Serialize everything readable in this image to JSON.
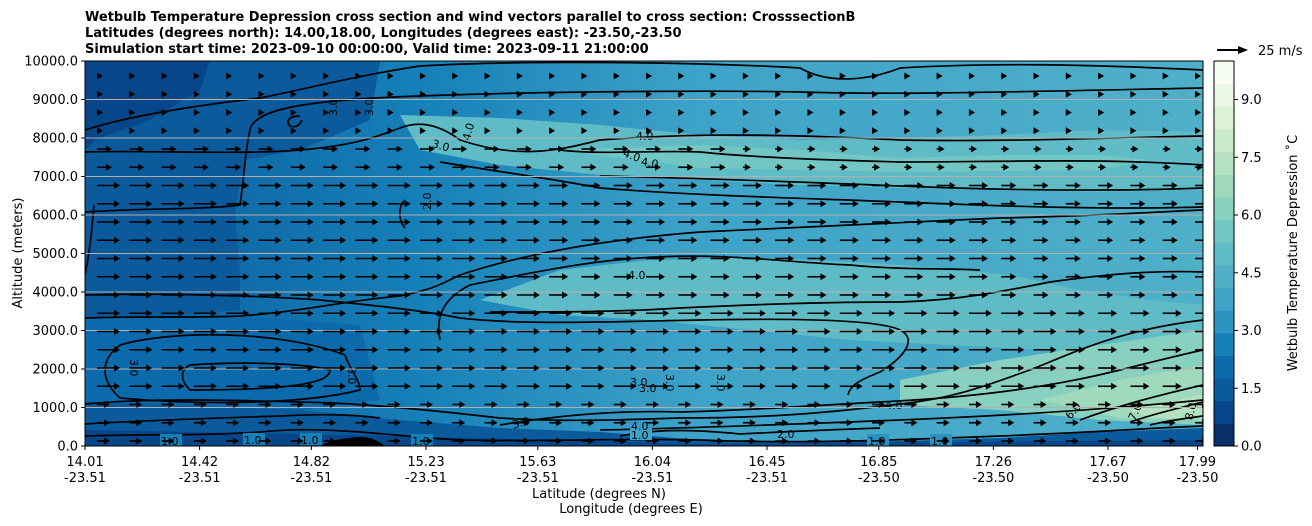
{
  "chart_data": {
    "type": "contourf",
    "title_lines": [
      "Wetbulb Temperature Depression cross section and wind vectors parallel to cross section: CrosssectionB",
      "Latitudes (degrees north): 14.00,18.00, Longitudes (degrees east): -23.50,-23.50",
      "Simulation start time: 2023-09-10 00:00:00, Valid time: 2023-09-11 21:00:00"
    ],
    "ylabel": "Altitude (meters)",
    "xlabel_lat": "Latitude (degrees N)",
    "xlabel_lon": "Longitude (degrees E)",
    "ylim": [
      0,
      10000
    ],
    "y_ticks": [
      "0.0",
      "1000.0",
      "2000.0",
      "3000.0",
      "4000.0",
      "5000.0",
      "6000.0",
      "7000.0",
      "8000.0",
      "9000.0",
      "10000.0"
    ],
    "y_tick_values": [
      0,
      1000,
      2000,
      3000,
      4000,
      5000,
      6000,
      7000,
      8000,
      9000,
      10000
    ],
    "x_ticks": [
      {
        "lat": "14.01",
        "lon": "-23.51",
        "frac": 0.0
      },
      {
        "lat": "14.42",
        "lon": "-23.51",
        "frac": 0.1025
      },
      {
        "lat": "14.82",
        "lon": "-23.51",
        "frac": 0.2025
      },
      {
        "lat": "15.23",
        "lon": "-23.51",
        "frac": 0.305
      },
      {
        "lat": "15.63",
        "lon": "-23.51",
        "frac": 0.405
      },
      {
        "lat": "16.04",
        "lon": "-23.51",
        "frac": 0.5075
      },
      {
        "lat": "16.45",
        "lon": "-23.51",
        "frac": 0.61
      },
      {
        "lat": "16.85",
        "lon": "-23.50",
        "frac": 0.71
      },
      {
        "lat": "17.26",
        "lon": "-23.50",
        "frac": 0.8125
      },
      {
        "lat": "17.67",
        "lon": "-23.50",
        "frac": 0.915
      },
      {
        "lat": "17.99",
        "lon": "-23.50",
        "frac": 0.995
      }
    ],
    "grid": "horizontal",
    "colorbar": {
      "label": "Wetbulb Temperature Depression ˚C",
      "range": [
        0,
        10
      ],
      "ticks": [
        "0.0",
        "1.5",
        "3.0",
        "4.5",
        "6.0",
        "7.5",
        "9.0"
      ],
      "tick_values": [
        0,
        1.5,
        3,
        4.5,
        6,
        7.5,
        9
      ],
      "colors": [
        "#08306b",
        "#08468a",
        "#0a5a9c",
        "#0b6aab",
        "#1680b8",
        "#2b93c2",
        "#3ea3c9",
        "#4fb0c8",
        "#5fbcc7",
        "#72c6c4",
        "#88d0c0",
        "#9fdabc",
        "#b5e3c1",
        "#c9ebca",
        "#dbf2d6",
        "#ecf8e6",
        "#f7fcf0"
      ]
    },
    "quiver_key": {
      "label": "25 m/s",
      "value": 25
    },
    "contour_labels": [
      "1.0",
      "2.0",
      "3.0",
      "4.0",
      "6.0",
      "7.0",
      "8.0"
    ]
  }
}
